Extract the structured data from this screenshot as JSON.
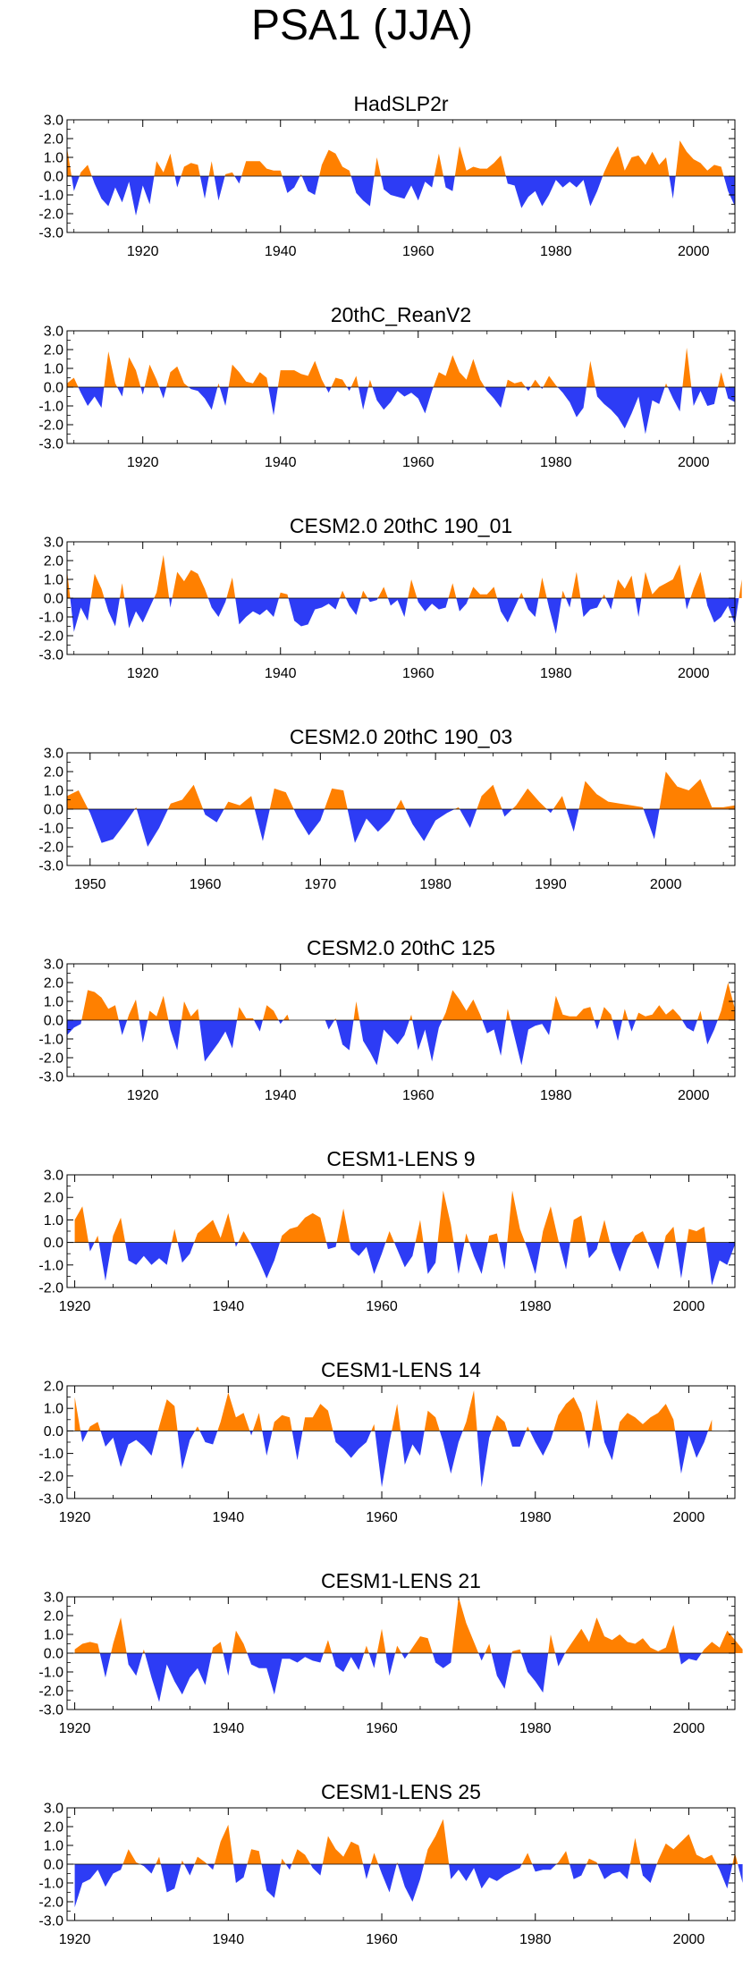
{
  "figure": {
    "title": "PSA1 (JJA)"
  },
  "colors": {
    "positive": "#ff8000",
    "negative": "#2d3cf5",
    "axis": "#000000"
  },
  "chart_data": [
    {
      "type": "area",
      "title": "HadSLP2r",
      "x_start": 1909,
      "xlim": [
        1909,
        2006
      ],
      "ylim": [
        -3.0,
        3.0
      ],
      "yticks": [
        3.0,
        2.0,
        1.0,
        0.0,
        -1.0,
        -2.0,
        -3.0
      ],
      "ytick_labels": [
        "3.0",
        "2.0",
        "1.0",
        "0.0",
        "-1.0",
        "-2.0",
        "-3.0"
      ],
      "xticks": [
        1920,
        1940,
        1960,
        1980,
        2000
      ],
      "xtick_labels": [
        "1920",
        "1940",
        "1960",
        "1980",
        "2000"
      ],
      "values": [
        1.5,
        -0.8,
        0.2,
        0.6,
        -0.4,
        -1.2,
        -1.6,
        -0.6,
        -1.4,
        -0.3,
        -2.1,
        -0.5,
        -1.5,
        0.8,
        0.2,
        1.2,
        -0.6,
        0.5,
        0.7,
        0.6,
        -1.2,
        0.8,
        -1.3,
        0.1,
        0.2,
        -0.4,
        0.8,
        0.8,
        0.8,
        0.4,
        0.3,
        0.3,
        -0.9,
        -0.6,
        0.1,
        -0.8,
        -1.0,
        0.6,
        1.4,
        1.2,
        0.5,
        0.3,
        -0.9,
        -1.3,
        -1.6,
        1.0,
        -0.7,
        -1.0,
        -1.1,
        -1.2,
        -0.5,
        -1.3,
        -0.3,
        -0.6,
        1.2,
        -0.6,
        -0.8,
        1.6,
        0.3,
        0.5,
        0.4,
        0.4,
        0.7,
        1.1,
        -0.4,
        -0.5,
        -1.7,
        -1.1,
        -0.8,
        -1.6,
        -1.0,
        -0.2,
        -0.6,
        -0.3,
        -0.6,
        -0.2,
        -1.6,
        -0.8,
        0.2,
        1.0,
        1.6,
        0.3,
        1.0,
        1.1,
        0.6,
        1.3,
        0.6,
        1.0,
        -1.2,
        1.9,
        1.3,
        0.9,
        0.7,
        0.3,
        0.6,
        0.5,
        -0.8,
        -1.6
      ]
    },
    {
      "type": "area",
      "title": "20thC_ReanV2",
      "x_start": 1909,
      "xlim": [
        1909,
        2006
      ],
      "ylim": [
        -3.0,
        3.0
      ],
      "yticks": [
        3.0,
        2.0,
        1.0,
        0.0,
        -1.0,
        -2.0,
        -3.0
      ],
      "ytick_labels": [
        "3.0",
        "2.0",
        "1.0",
        "0.0",
        "-1.0",
        "-2.0",
        "-3.0"
      ],
      "xticks": [
        1920,
        1940,
        1960,
        1980,
        2000
      ],
      "xtick_labels": [
        "1920",
        "1940",
        "1960",
        "1980",
        "2000"
      ],
      "values": [
        0.2,
        0.5,
        -0.3,
        -1.0,
        -0.5,
        -1.1,
        1.9,
        0.2,
        -0.5,
        1.6,
        0.9,
        -0.4,
        1.2,
        0.4,
        -0.6,
        0.8,
        1.1,
        0.2,
        -0.1,
        -0.2,
        -0.6,
        -1.2,
        0.2,
        -1.0,
        1.2,
        0.8,
        0.3,
        0.2,
        0.8,
        0.5,
        -1.5,
        0.9,
        0.9,
        0.9,
        0.7,
        0.6,
        1.4,
        0.4,
        -0.3,
        0.5,
        0.4,
        -0.2,
        0.6,
        -1.2,
        0.4,
        -0.7,
        -1.2,
        -0.8,
        -0.2,
        -0.5,
        -0.3,
        -0.6,
        -1.4,
        -0.2,
        0.8,
        0.6,
        1.7,
        0.8,
        0.4,
        1.5,
        0.4,
        -0.2,
        -0.6,
        -1.1,
        0.4,
        0.2,
        0.3,
        -0.2,
        0.4,
        -0.1,
        0.6,
        0.1,
        -0.3,
        -0.8,
        -1.6,
        -1.1,
        1.4,
        -0.5,
        -0.9,
        -1.2,
        -1.6,
        -2.2,
        -1.4,
        -0.5,
        -2.5,
        -0.7,
        -0.9,
        0.2,
        -0.6,
        -1.3,
        2.1,
        -1.0,
        -0.2,
        -1.0,
        -0.9,
        0.8,
        -0.6,
        -0.8
      ]
    },
    {
      "type": "area",
      "title": "CESM2.0 20thC 190_01",
      "x_start": 1909,
      "xlim": [
        1909,
        2006
      ],
      "ylim": [
        -3.0,
        3.0
      ],
      "yticks": [
        3.0,
        2.0,
        1.0,
        0.0,
        -1.0,
        -2.0,
        -3.0
      ],
      "ytick_labels": [
        "3.0",
        "2.0",
        "1.0",
        "0.0",
        "-1.0",
        "-2.0",
        "-3.0"
      ],
      "xticks": [
        1920,
        1940,
        1960,
        1980,
        2000
      ],
      "xtick_labels": [
        "1920",
        "1940",
        "1960",
        "1980",
        "2000"
      ],
      "values": [
        1.5,
        -1.8,
        -0.5,
        -1.2,
        1.3,
        0.5,
        -0.7,
        -1.5,
        0.8,
        -1.6,
        -0.7,
        -1.3,
        -0.5,
        0.3,
        2.3,
        -0.5,
        1.4,
        0.9,
        1.5,
        1.3,
        0.5,
        -0.5,
        -1.0,
        -0.2,
        1.1,
        -1.4,
        -1.0,
        -0.7,
        -0.9,
        -0.6,
        -1.0,
        0.3,
        0.2,
        -1.2,
        -1.5,
        -1.4,
        -0.6,
        -0.5,
        -0.3,
        -0.6,
        0.4,
        -0.4,
        -0.9,
        0.4,
        -0.2,
        -0.1,
        0.6,
        -0.4,
        -0.1,
        -1.0,
        1.0,
        -0.2,
        -0.7,
        -0.3,
        -0.6,
        -0.5,
        0.8,
        -0.7,
        -0.3,
        0.6,
        0.2,
        0.2,
        0.6,
        -0.7,
        -1.3,
        -0.5,
        0.3,
        -0.6,
        -1.0,
        1.1,
        -0.5,
        -1.9,
        0.4,
        -0.5,
        1.4,
        -1.0,
        -0.6,
        -0.5,
        0.2,
        -0.6,
        1.0,
        0.5,
        1.2,
        -1.0,
        1.4,
        0.2,
        0.6,
        0.8,
        1.0,
        1.8,
        -0.6,
        0.5,
        1.4,
        -0.4,
        -1.3,
        -1.0,
        -0.4,
        -1.4,
        1.0
      ]
    },
    {
      "type": "area",
      "title": "CESM2.0 20thC 190_03",
      "x_start": 1948,
      "xlim": [
        1948,
        2006
      ],
      "ylim": [
        -3.0,
        3.0
      ],
      "yticks": [
        3.0,
        2.0,
        1.0,
        0.0,
        -1.0,
        -2.0,
        -3.0
      ],
      "ytick_labels": [
        "3.0",
        "2.0",
        "1.0",
        "0.0",
        "-1.0",
        "-2.0",
        "-3.0"
      ],
      "xticks": [
        1950,
        1960,
        1970,
        1980,
        1990,
        2000
      ],
      "xtick_labels": [
        "1950",
        "1960",
        "1970",
        "1980",
        "1990",
        "2000"
      ],
      "values": [
        0.7,
        1.0,
        -0.2,
        -1.8,
        -1.6,
        -0.8,
        0.1,
        -2.0,
        -1.0,
        0.3,
        0.5,
        1.3,
        -0.3,
        -0.7,
        0.4,
        0.2,
        0.7,
        -1.7,
        1.1,
        0.9,
        -0.4,
        -1.4,
        -0.6,
        1.1,
        1.0,
        -1.8,
        -0.5,
        -1.2,
        -0.6,
        0.5,
        -0.8,
        -1.7,
        -0.6,
        -0.2,
        0.1,
        -1.0,
        0.7,
        1.3,
        -0.4,
        0.2,
        1.1,
        0.4,
        -0.2,
        0.7,
        -1.2,
        1.5,
        0.8,
        0.4,
        0.3,
        0.2,
        0.1,
        -1.6,
        2.0,
        1.2,
        1.0,
        1.6,
        0.1,
        0.1,
        0.2
      ]
    },
    {
      "type": "area",
      "title": "CESM2.0 20thC 125",
      "x_start": 1909,
      "xlim": [
        1909,
        2006
      ],
      "ylim": [
        -3.0,
        3.0
      ],
      "yticks": [
        3.0,
        2.0,
        1.0,
        0.0,
        -1.0,
        -2.0,
        -3.0
      ],
      "ytick_labels": [
        "3.0",
        "2.0",
        "1.0",
        "0.0",
        "-1.0",
        "-2.0",
        "-3.0"
      ],
      "xticks": [
        1920,
        1940,
        1960,
        1980,
        2000
      ],
      "xtick_labels": [
        "1920",
        "1940",
        "1960",
        "1980",
        "2000"
      ],
      "values": [
        -0.8,
        -0.4,
        -0.2,
        1.6,
        1.5,
        1.2,
        0.6,
        0.8,
        -0.8,
        0.3,
        1.1,
        -1.2,
        0.5,
        0.2,
        1.3,
        -0.5,
        -1.6,
        1.0,
        0.2,
        0.6,
        -2.2,
        -1.7,
        -1.2,
        -0.6,
        -1.5,
        0.7,
        0.1,
        0.1,
        -0.6,
        0.8,
        0.5,
        -0.2,
        0.3,
        -0.8,
        -1.5,
        -0.8,
        0.0,
        0.5,
        -0.5,
        0.1,
        -1.3,
        -1.6,
        1.0,
        -1.1,
        -1.7,
        -2.4,
        -0.5,
        -0.9,
        -1.3,
        -0.8,
        0.3,
        -1.6,
        -0.5,
        -2.2,
        -0.4,
        0.4,
        1.6,
        1.1,
        0.5,
        1.1,
        0.3,
        -0.7,
        -0.5,
        -1.9,
        0.6,
        -0.9,
        -2.4,
        -0.5,
        -0.3,
        -0.2,
        -0.8,
        1.3,
        0.3,
        0.2,
        0.2,
        0.6,
        0.7,
        -0.5,
        0.7,
        0.3,
        -1.1,
        0.6,
        -0.6,
        0.4,
        0.2,
        0.3,
        0.8,
        0.3,
        0.6,
        0.2,
        -0.4,
        -0.6,
        0.5,
        -1.3,
        -0.5,
        0.5,
        2.0,
        0.6
      ]
    },
    {
      "type": "area",
      "title": "CESM1-LENS 9",
      "x_start": 1920,
      "xlim": [
        1919,
        2006
      ],
      "ylim": [
        -2.0,
        3.0
      ],
      "yticks": [
        3.0,
        2.0,
        1.0,
        0.0,
        -1.0,
        -2.0
      ],
      "ytick_labels": [
        "3.0",
        "2.0",
        "1.0",
        "0.0",
        "-1.0",
        "-2.0"
      ],
      "xticks": [
        1920,
        1940,
        1960,
        1980,
        2000
      ],
      "xtick_labels": [
        "1920",
        "1940",
        "1960",
        "1980",
        "2000"
      ],
      "values": [
        1.0,
        1.6,
        -0.4,
        0.3,
        -1.7,
        0.3,
        1.1,
        -0.8,
        -1.0,
        -0.6,
        -1.0,
        -0.7,
        -1.0,
        0.6,
        -0.9,
        -0.5,
        0.4,
        0.7,
        1.0,
        0.2,
        1.3,
        -0.2,
        0.5,
        -0.1,
        -0.8,
        -1.6,
        -0.8,
        0.3,
        0.6,
        0.7,
        1.1,
        1.3,
        1.1,
        -0.3,
        -0.2,
        1.5,
        -0.3,
        -0.6,
        -0.2,
        -1.4,
        -0.5,
        0.5,
        -0.3,
        -1.1,
        -0.6,
        1.0,
        -1.4,
        -0.9,
        2.3,
        0.8,
        -1.4,
        0.4,
        -0.6,
        -1.4,
        0.3,
        0.4,
        -1.2,
        2.3,
        0.6,
        -0.3,
        -1.4,
        0.5,
        1.6,
        0.1,
        -1.2,
        1.0,
        1.2,
        -0.7,
        -0.3,
        1.0,
        -0.4,
        -1.3,
        -0.3,
        0.3,
        0.5,
        -0.3,
        -1.2,
        0.3,
        0.7,
        -1.6,
        0.6,
        0.5,
        0.7,
        -1.9,
        -0.8,
        -1.0,
        -0.1
      ]
    },
    {
      "type": "area",
      "title": "CESM1-LENS 14",
      "x_start": 1920,
      "xlim": [
        1919,
        2006
      ],
      "ylim": [
        -3.0,
        2.0
      ],
      "yticks": [
        2.0,
        1.0,
        0.0,
        -1.0,
        -2.0,
        -3.0
      ],
      "ytick_labels": [
        "2.0",
        "1.0",
        "0.0",
        "-1.0",
        "-2.0",
        "-3.0"
      ],
      "xticks": [
        1920,
        1940,
        1960,
        1980,
        2000
      ],
      "xtick_labels": [
        "1920",
        "1940",
        "1960",
        "1980",
        "2000"
      ],
      "values": [
        1.5,
        -0.5,
        0.2,
        0.4,
        -0.7,
        -0.3,
        -1.6,
        -0.6,
        -0.4,
        -0.7,
        -1.1,
        0.2,
        1.4,
        1.1,
        -1.7,
        -0.4,
        0.2,
        -0.5,
        -0.6,
        0.4,
        1.7,
        0.6,
        0.8,
        -0.2,
        0.8,
        -1.1,
        0.4,
        0.7,
        0.6,
        -1.3,
        0.6,
        0.6,
        1.2,
        0.9,
        -0.5,
        -0.8,
        -1.2,
        -0.8,
        -0.5,
        0.3,
        -2.5,
        -0.5,
        1.2,
        -1.5,
        -0.6,
        -1.1,
        0.9,
        0.6,
        -0.5,
        -1.9,
        -0.5,
        0.4,
        1.8,
        -2.5,
        -0.3,
        0.7,
        0.4,
        -0.7,
        -0.7,
        0.2,
        -0.5,
        -1.1,
        -0.4,
        0.7,
        1.2,
        1.5,
        0.8,
        -0.8,
        1.4,
        -0.5,
        -1.3,
        0.4,
        0.8,
        0.6,
        0.3,
        0.6,
        0.8,
        1.2,
        0.5,
        -1.9,
        -0.2,
        -1.2,
        -0.5,
        0.5
      ]
    },
    {
      "type": "area",
      "title": "CESM1-LENS 21",
      "x_start": 1920,
      "xlim": [
        1919,
        2006
      ],
      "ylim": [
        -3.0,
        3.0
      ],
      "yticks": [
        3.0,
        2.0,
        1.0,
        0.0,
        -1.0,
        -2.0,
        -3.0
      ],
      "ytick_labels": [
        "3.0",
        "2.0",
        "1.0",
        "0.0",
        "-1.0",
        "-2.0",
        "-3.0"
      ],
      "xticks": [
        1920,
        1940,
        1960,
        1980,
        2000
      ],
      "xtick_labels": [
        "1920",
        "1940",
        "1960",
        "1980",
        "2000"
      ],
      "values": [
        0.2,
        0.5,
        0.6,
        0.5,
        -1.3,
        0.5,
        1.9,
        -0.6,
        -1.2,
        0.2,
        -1.3,
        -2.6,
        -0.6,
        -1.5,
        -2.2,
        -1.3,
        -0.8,
        -1.7,
        0.3,
        0.6,
        -1.2,
        1.2,
        0.5,
        -0.6,
        -0.8,
        -0.8,
        -2.2,
        -0.3,
        -0.3,
        -0.5,
        -0.2,
        -0.4,
        -0.5,
        0.7,
        -0.7,
        -1.0,
        -0.2,
        -0.9,
        0.4,
        -0.8,
        1.3,
        -1.2,
        0.4,
        -0.3,
        0.3,
        0.9,
        0.8,
        -0.5,
        -0.8,
        -0.5,
        3.0,
        1.6,
        0.6,
        -0.4,
        0.5,
        -1.2,
        -1.9,
        0.1,
        0.2,
        -1.0,
        -1.5,
        -2.1,
        1.0,
        -0.7,
        0.1,
        0.7,
        1.3,
        0.6,
        1.9,
        0.9,
        0.7,
        1.0,
        0.6,
        0.5,
        0.8,
        0.3,
        0.1,
        0.3,
        1.5,
        -0.6,
        -0.3,
        -0.4,
        0.2,
        0.6,
        0.3,
        1.2,
        0.7,
        0.2
      ]
    },
    {
      "type": "area",
      "title": "CESM1-LENS 25",
      "x_start": 1920,
      "xlim": [
        1919,
        2006
      ],
      "ylim": [
        -3.0,
        3.0
      ],
      "yticks": [
        3.0,
        2.0,
        1.0,
        0.0,
        -1.0,
        -2.0,
        -3.0
      ],
      "ytick_labels": [
        "3.0",
        "2.0",
        "1.0",
        "0.0",
        "-1.0",
        "-2.0",
        "-3.0"
      ],
      "xticks": [
        1920,
        1940,
        1960,
        1980,
        2000
      ],
      "xtick_labels": [
        "1920",
        "1940",
        "1960",
        "1980",
        "2000"
      ],
      "values": [
        -2.3,
        -1.0,
        -0.8,
        -0.3,
        -1.2,
        -0.5,
        -0.3,
        0.8,
        0.1,
        -0.1,
        -0.5,
        0.4,
        -1.5,
        -1.3,
        0.2,
        -0.6,
        0.4,
        0.1,
        -0.3,
        1.2,
        2.1,
        -1.0,
        -0.7,
        0.8,
        0.7,
        -1.4,
        -1.8,
        0.3,
        -0.3,
        0.8,
        0.5,
        -0.2,
        -0.6,
        1.5,
        0.8,
        0.4,
        1.2,
        1.0,
        -0.8,
        0.6,
        -0.5,
        -1.5,
        0.1,
        -1.2,
        -2.0,
        -0.8,
        0.8,
        1.5,
        2.4,
        -0.8,
        -0.3,
        -0.9,
        -0.2,
        -1.3,
        -0.7,
        -0.9,
        -0.6,
        -0.4,
        -0.2,
        0.6,
        -0.4,
        -0.3,
        -0.3,
        0.1,
        0.7,
        -0.8,
        -0.6,
        0.3,
        0.1,
        -0.8,
        -0.5,
        -0.4,
        -0.8,
        1.4,
        -0.6,
        -1.0,
        0.2,
        1.1,
        0.8,
        1.2,
        1.6,
        0.5,
        0.3,
        0.5,
        -0.3,
        -1.3,
        0.6,
        -1.0
      ]
    }
  ]
}
